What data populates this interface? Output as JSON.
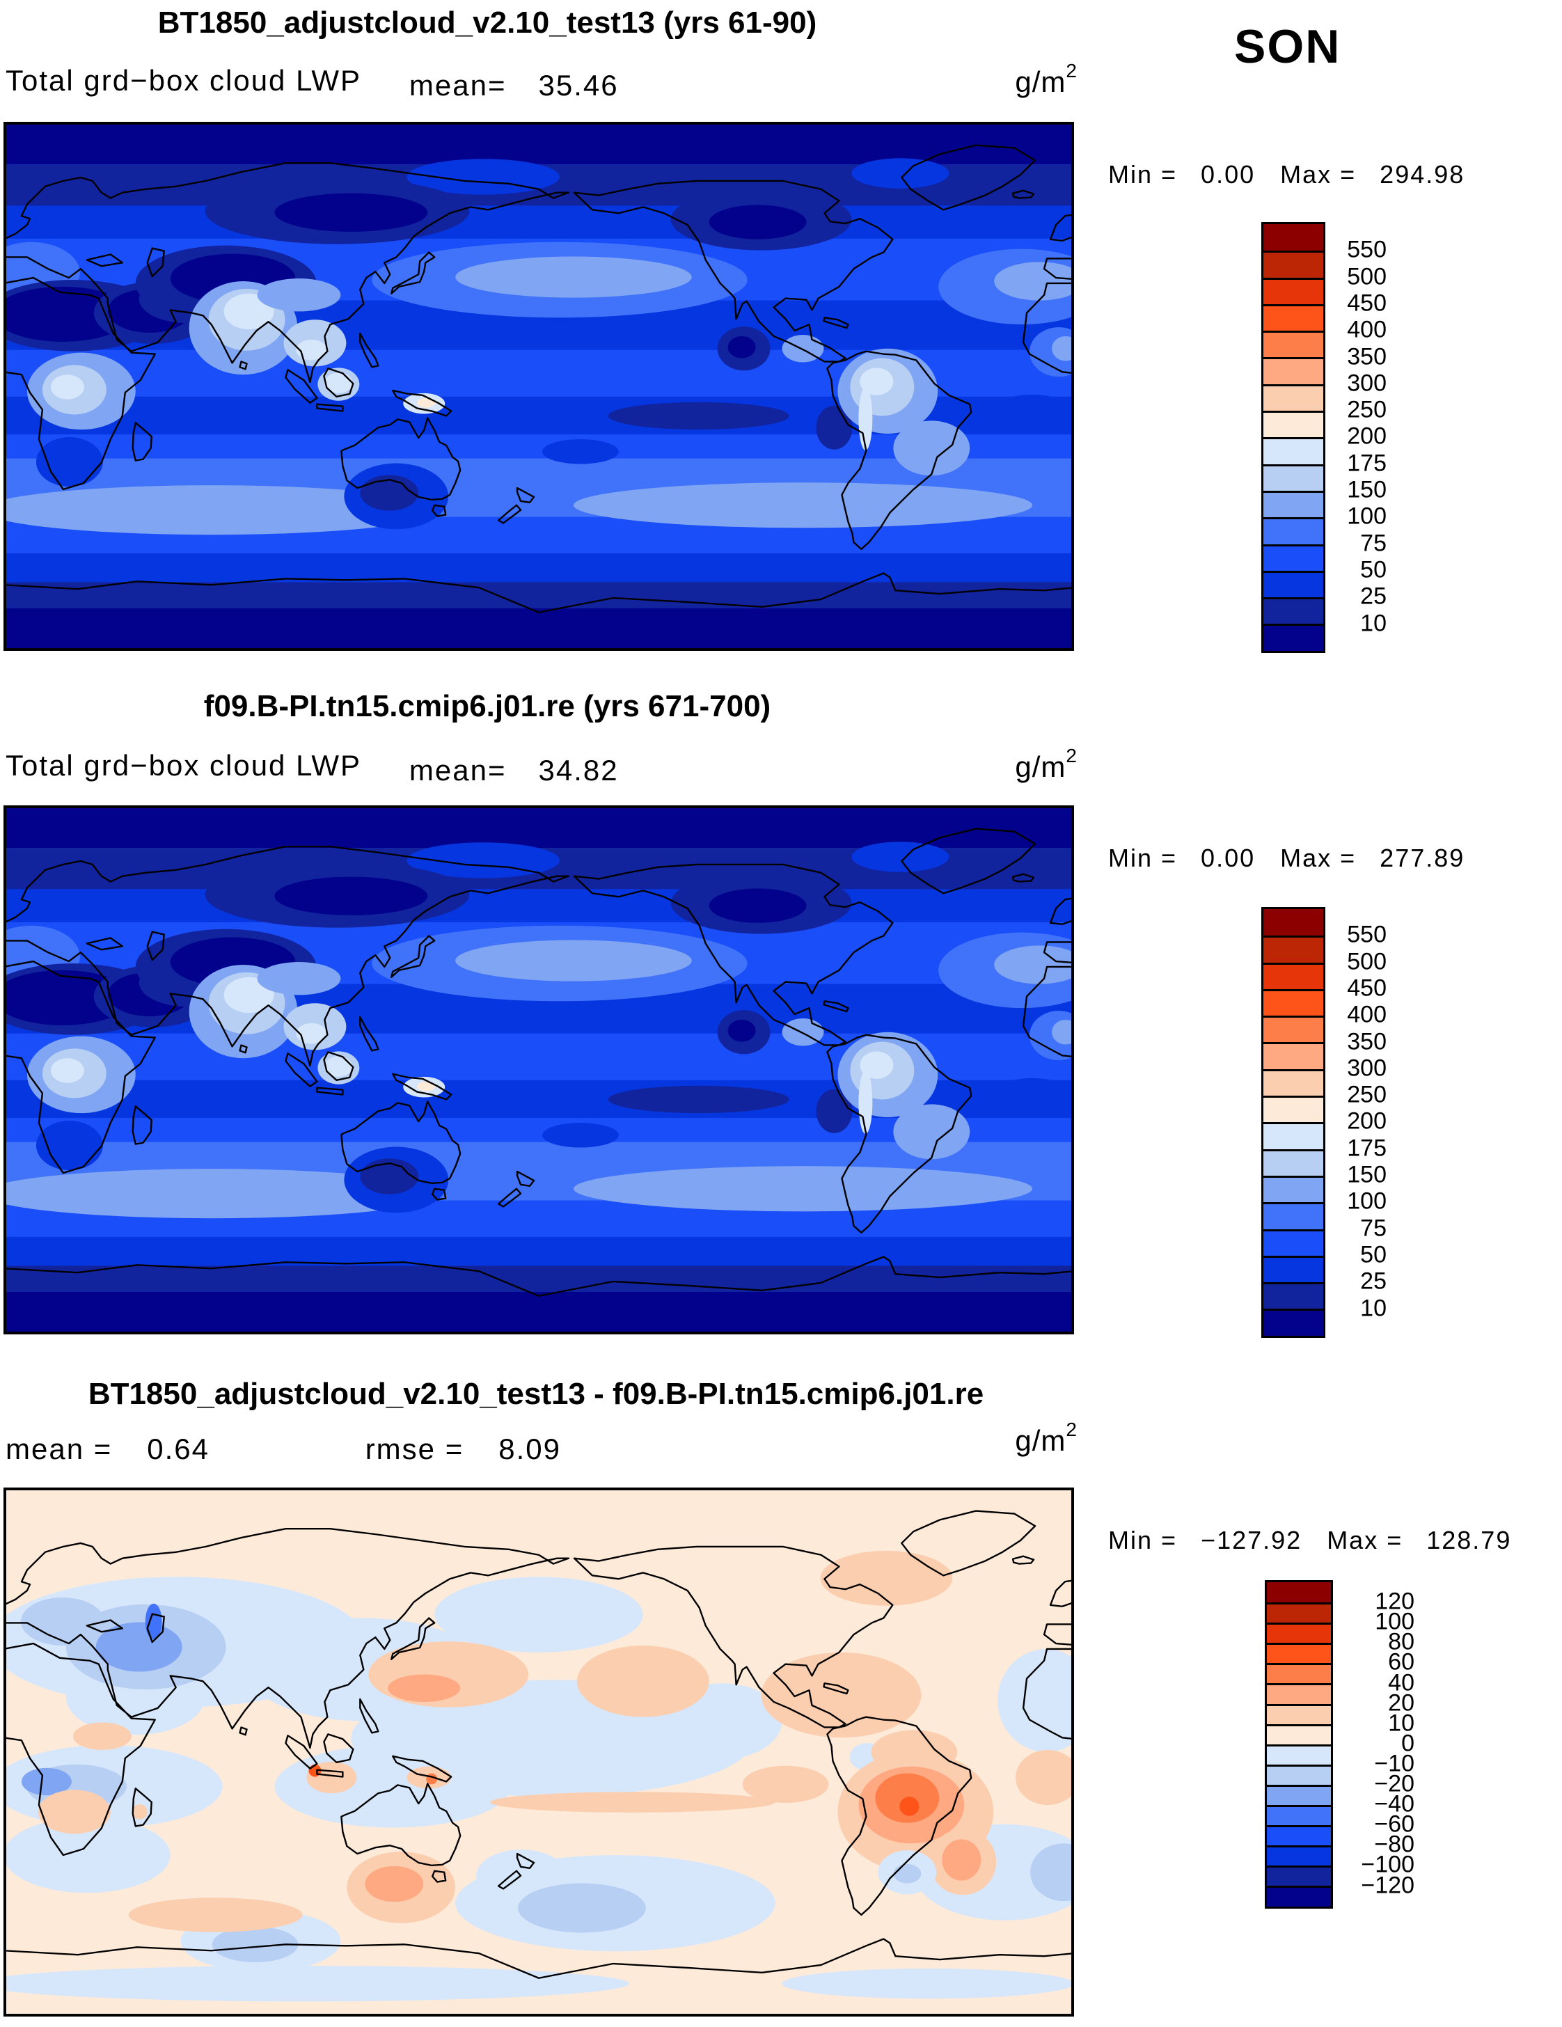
{
  "season_label": "SON",
  "chart_data": {
    "type": "filled-contour-world-map",
    "units": "g/m^2",
    "projection": "equirectangular 0-360E",
    "levels_lwp": [
      10,
      25,
      50,
      75,
      100,
      150,
      175,
      200,
      250,
      300,
      350,
      400,
      450,
      500,
      550
    ],
    "levels_diff": [
      -120,
      -100,
      -80,
      -60,
      -40,
      -20,
      -10,
      0,
      10,
      20,
      40,
      60,
      80,
      100,
      120
    ],
    "palette": [
      "#8c0000",
      "#bc2605",
      "#e53509",
      "#fe5319",
      "#fe7e4a",
      "#fea981",
      "#fcceb0",
      "#fdead9",
      "#d7e7fb",
      "#b8cff4",
      "#7fa5f3",
      "#4173fa",
      "#1a4ef9",
      "#0636e0",
      "#12239e",
      "#02028c"
    ],
    "panels": [
      {
        "title": "BT1850_adjustcloud_v2.10_test13 (yrs 61-90)",
        "field_label": "Total grd−box cloud LWP",
        "mean_label": "mean=",
        "mean_value": "35.46",
        "units_base": "g/m",
        "units_exp": "2",
        "min_label": "Min =",
        "min_value": "0.00",
        "max_label": "Max =",
        "max_value": "294.98",
        "colorbar_labels": [
          "550",
          "500",
          "450",
          "400",
          "350",
          "300",
          "250",
          "200",
          "175",
          "150",
          "100",
          "75",
          "50",
          "25",
          "10"
        ]
      },
      {
        "title": "f09.B-PI.tn15.cmip6.j01.re (yrs 671-700)",
        "field_label": "Total grd−box cloud LWP",
        "mean_label": "mean=",
        "mean_value": "34.82",
        "units_base": "g/m",
        "units_exp": "2",
        "min_label": "Min =",
        "min_value": "0.00",
        "max_label": "Max =",
        "max_value": "277.89",
        "colorbar_labels": [
          "550",
          "500",
          "450",
          "400",
          "350",
          "300",
          "250",
          "200",
          "175",
          "150",
          "100",
          "75",
          "50",
          "25",
          "10"
        ]
      },
      {
        "title": "BT1850_adjustcloud_v2.10_test13 - f09.B-PI.tn15.cmip6.j01.re",
        "mean_label": "mean =",
        "mean_value": "0.64",
        "rmse_label": "rmse =",
        "rmse_value": "8.09",
        "units_base": "g/m",
        "units_exp": "2",
        "min_label": "Min =",
        "min_value": "−127.92",
        "max_label": "Max =",
        "max_value": "128.79",
        "colorbar_labels": [
          "120",
          "100",
          "80",
          "60",
          "40",
          "20",
          "10",
          "0",
          "−10",
          "−20",
          "−40",
          "−60",
          "−80",
          "−100",
          "−120"
        ]
      }
    ]
  }
}
